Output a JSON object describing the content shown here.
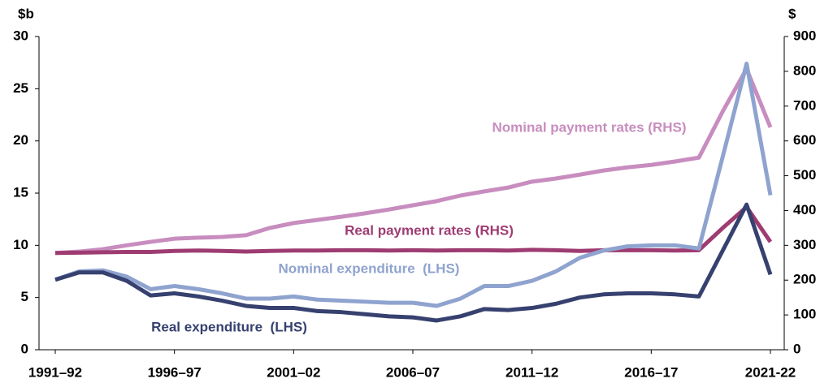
{
  "chart_data": {
    "type": "line",
    "y_label": "$b",
    "y2_label": "$",
    "categories": [
      "1991–92",
      null,
      null,
      null,
      null,
      "1996–97",
      null,
      null,
      null,
      null,
      "2001–02",
      null,
      null,
      null,
      null,
      "2006–07",
      null,
      null,
      null,
      null,
      "2011–12",
      null,
      null,
      null,
      null,
      "2016–17",
      null,
      null,
      null,
      null,
      "2021-22"
    ],
    "ylim": [
      0,
      30
    ],
    "yticks": [
      0,
      5,
      10,
      15,
      20,
      25,
      30
    ],
    "y2lim": [
      0,
      900
    ],
    "y2ticks": [
      0,
      100,
      200,
      300,
      400,
      500,
      600,
      700,
      800,
      900
    ],
    "series": [
      {
        "name": "Nominal payment rates (RHS)",
        "color": "#c88dbf",
        "axis": "y2",
        "values": [
          278,
          282,
          289,
          300,
          310,
          319,
          322,
          324,
          329,
          350,
          364,
          373,
          382,
          392,
          403,
          415,
          427,
          443,
          455,
          466,
          483,
          492,
          503,
          515,
          524,
          531,
          541,
          552,
          685,
          807,
          639
        ]
      },
      {
        "name": "Real payment rates (RHS)",
        "color": "#9e3c72",
        "axis": "y2",
        "values": [
          278,
          279,
          280,
          281,
          281,
          284,
          285,
          284,
          282,
          284,
          285,
          285,
          286,
          286,
          285,
          286,
          285,
          286,
          286,
          285,
          287,
          286,
          284,
          286,
          286,
          286,
          285,
          286,
          350,
          410,
          310
        ]
      },
      {
        "name": "Nominal expenditure  (LHS)",
        "color": "#8fa3cf",
        "values": [
          6.7,
          7.5,
          7.6,
          7.0,
          5.8,
          6.1,
          5.8,
          5.4,
          4.9,
          4.9,
          5.1,
          4.8,
          4.7,
          4.6,
          4.5,
          4.5,
          4.2,
          4.9,
          6.1,
          6.1,
          6.6,
          7.5,
          8.8,
          9.5,
          9.9,
          10.0,
          10.0,
          9.7,
          18.5,
          27.4,
          14.8
        ]
      },
      {
        "name": "Real expenditure  (LHS)",
        "color": "#36416f",
        "values": [
          6.7,
          7.4,
          7.4,
          6.6,
          5.2,
          5.4,
          5.1,
          4.7,
          4.2,
          4.0,
          4.0,
          3.7,
          3.6,
          3.4,
          3.2,
          3.1,
          2.8,
          3.2,
          3.9,
          3.8,
          4.0,
          4.4,
          5.0,
          5.3,
          5.4,
          5.4,
          5.3,
          5.1,
          9.5,
          13.9,
          7.2
        ]
      }
    ]
  }
}
